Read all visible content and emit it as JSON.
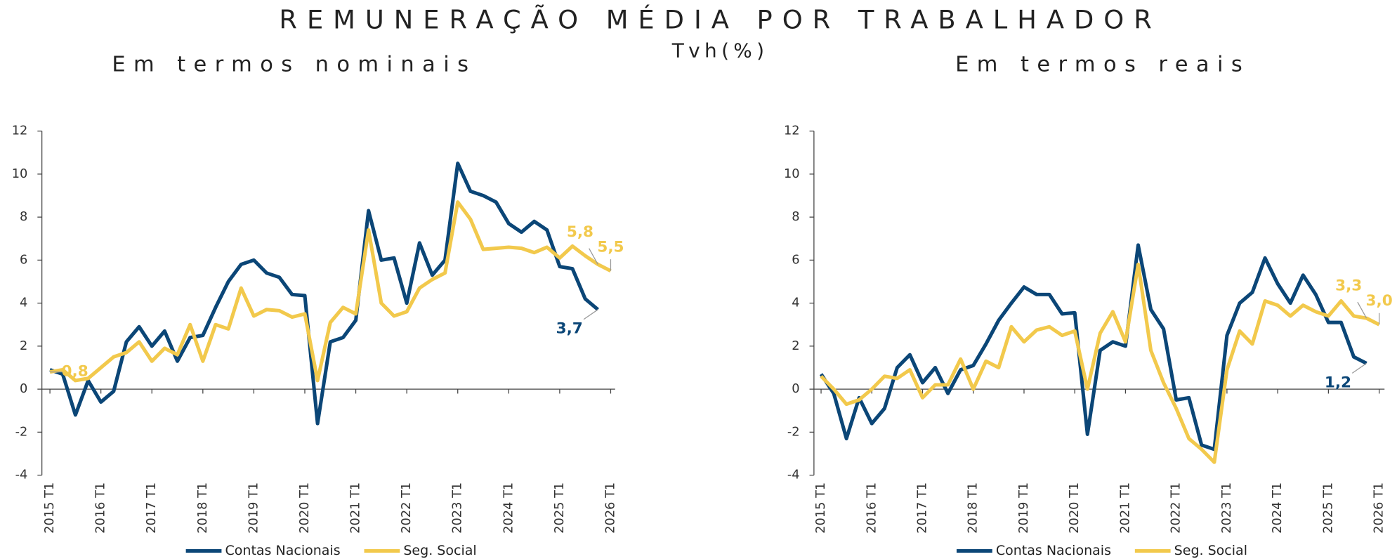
{
  "title": "REMUNERAÇÃO MÉDIA POR TRABALHADOR",
  "subtitle": "Tvh(%)",
  "chart_data": [
    {
      "type": "line",
      "title": "Em termos nominais",
      "categories": [
        "2015 T1",
        null,
        null,
        null,
        "2016 T1",
        null,
        null,
        null,
        "2017 T1",
        null,
        null,
        null,
        "2018 T1",
        null,
        null,
        null,
        "2019 T1",
        null,
        null,
        null,
        "2020 T1",
        null,
        null,
        null,
        "2021 T1",
        null,
        null,
        null,
        "2022 T1",
        null,
        null,
        null,
        "2023 T1",
        null,
        null,
        null,
        "2024 T1",
        null,
        null,
        null,
        "2025 T1",
        null,
        null,
        null,
        "2026 T1"
      ],
      "series": [
        {
          "name": "Contas Nacionais",
          "color": "#0b4677",
          "values": [
            0.9,
            0.7,
            -1.2,
            0.4,
            -0.6,
            -0.1,
            2.2,
            2.9,
            2.0,
            2.7,
            1.3,
            2.4,
            2.5,
            3.8,
            5.0,
            5.8,
            6.0,
            5.4,
            5.2,
            4.4,
            4.35,
            -1.6,
            2.2,
            2.4,
            3.2,
            8.3,
            6.0,
            6.1,
            4.0,
            6.8,
            5.3,
            6.0,
            10.5,
            9.2,
            9.0,
            8.7,
            7.7,
            7.3,
            7.8,
            7.4,
            5.7,
            5.6,
            4.2,
            3.7,
            null
          ],
          "value_labels": [
            null,
            null,
            null,
            null,
            null,
            null,
            null,
            null,
            null,
            null,
            null,
            null,
            null,
            null,
            null,
            null,
            null,
            null,
            null,
            null,
            null,
            null,
            null,
            null,
            null,
            null,
            null,
            null,
            null,
            null,
            null,
            null,
            null,
            null,
            null,
            null,
            null,
            null,
            null,
            null,
            null,
            null,
            null,
            "3,7",
            null
          ]
        },
        {
          "name": "Seg. Social",
          "color": "#f2c94c",
          "values": [
            0.8,
            0.9,
            0.4,
            0.5,
            1.0,
            1.5,
            1.7,
            2.2,
            1.3,
            1.9,
            1.6,
            3.0,
            1.3,
            3.0,
            2.8,
            4.7,
            3.4,
            3.7,
            3.65,
            3.35,
            3.5,
            0.4,
            3.1,
            3.8,
            3.5,
            7.4,
            4.0,
            3.4,
            3.6,
            4.7,
            5.1,
            5.4,
            8.7,
            7.9,
            6.5,
            6.55,
            6.6,
            6.55,
            6.35,
            6.6,
            6.1,
            6.65,
            6.2,
            5.8,
            5.5
          ],
          "value_labels": [
            "0,8",
            null,
            null,
            null,
            null,
            null,
            null,
            null,
            null,
            null,
            null,
            null,
            null,
            null,
            null,
            null,
            null,
            null,
            null,
            null,
            null,
            null,
            null,
            null,
            null,
            null,
            null,
            null,
            null,
            null,
            null,
            null,
            null,
            null,
            null,
            null,
            null,
            null,
            null,
            null,
            null,
            null,
            null,
            "5,8",
            "5,5"
          ]
        }
      ],
      "ylim": [
        -4,
        12
      ],
      "yticks": [
        -4,
        -2,
        0,
        2,
        4,
        6,
        8,
        10,
        12
      ],
      "legend": "bottom"
    },
    {
      "type": "line",
      "title": "Em termos reais",
      "categories": [
        "2015 T1",
        null,
        null,
        null,
        "2016 T1",
        null,
        null,
        null,
        "2017 T1",
        null,
        null,
        null,
        "2018 T1",
        null,
        null,
        null,
        "2019 T1",
        null,
        null,
        null,
        "2020 T1",
        null,
        null,
        null,
        "2021 T1",
        null,
        null,
        null,
        "2022 T1",
        null,
        null,
        null,
        "2023 T1",
        null,
        null,
        null,
        "2024 T1",
        null,
        null,
        null,
        "2025 T1",
        null,
        null,
        null,
        "2026 T1"
      ],
      "series": [
        {
          "name": "Contas Nacionais",
          "color": "#0b4677",
          "values": [
            0.7,
            -0.2,
            -2.3,
            -0.4,
            -1.6,
            -0.9,
            1.0,
            1.6,
            0.3,
            1.0,
            -0.2,
            0.9,
            1.1,
            2.1,
            3.2,
            4.0,
            4.75,
            4.4,
            4.4,
            3.5,
            3.55,
            -2.1,
            1.8,
            2.2,
            2.0,
            6.7,
            3.7,
            2.8,
            -0.5,
            -0.4,
            -2.6,
            -2.8,
            2.5,
            4.0,
            4.5,
            6.1,
            4.9,
            4.0,
            5.3,
            4.4,
            3.1,
            3.1,
            1.5,
            1.2,
            null
          ],
          "value_labels": [
            null,
            null,
            null,
            null,
            null,
            null,
            null,
            null,
            null,
            null,
            null,
            null,
            null,
            null,
            null,
            null,
            null,
            null,
            null,
            null,
            null,
            null,
            null,
            null,
            null,
            null,
            null,
            null,
            null,
            null,
            null,
            null,
            null,
            null,
            null,
            null,
            null,
            null,
            null,
            null,
            null,
            null,
            null,
            "1,2",
            null
          ]
        },
        {
          "name": "Seg. Social",
          "color": "#f2c94c",
          "values": [
            0.6,
            0.0,
            -0.7,
            -0.5,
            0.0,
            0.6,
            0.5,
            0.9,
            -0.4,
            0.2,
            0.2,
            1.4,
            0.0,
            1.3,
            1.0,
            2.9,
            2.2,
            2.75,
            2.9,
            2.5,
            2.7,
            0.0,
            2.6,
            3.6,
            2.2,
            5.8,
            1.8,
            0.3,
            -0.9,
            -2.3,
            -2.8,
            -3.4,
            0.9,
            2.7,
            2.1,
            4.1,
            3.9,
            3.4,
            3.9,
            3.6,
            3.4,
            4.1,
            3.4,
            3.3,
            3.0
          ],
          "value_labels": [
            null,
            null,
            null,
            null,
            null,
            null,
            null,
            null,
            null,
            null,
            null,
            null,
            null,
            null,
            null,
            null,
            null,
            null,
            null,
            null,
            null,
            null,
            null,
            null,
            null,
            null,
            null,
            null,
            null,
            null,
            null,
            null,
            null,
            null,
            null,
            null,
            null,
            null,
            null,
            null,
            null,
            null,
            null,
            "3,3",
            "3,0"
          ]
        }
      ],
      "ylim": [
        -4,
        12
      ],
      "yticks": [
        -4,
        -2,
        0,
        2,
        4,
        6,
        8,
        10,
        12
      ],
      "legend": "bottom"
    }
  ]
}
